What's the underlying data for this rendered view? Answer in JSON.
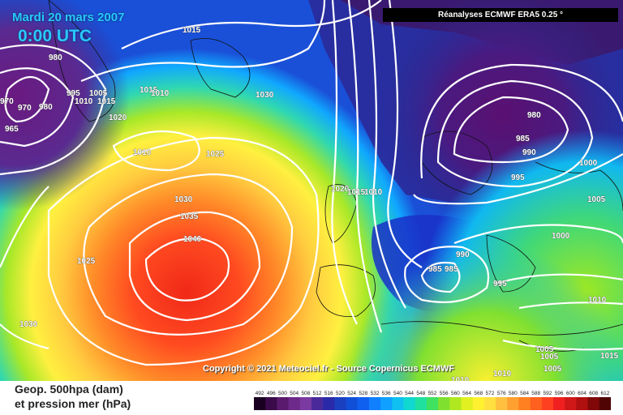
{
  "header": {
    "date": "Mardi 20 mars 2007",
    "time": "0:00 UTC",
    "source": "Réanalyses ECMWF ERA5 0.25 °"
  },
  "copyright": "Copyright © 2021 Meteociel.fr - Source Copernicus ECMWF",
  "legend": {
    "line1": "Geop. 500hpa (dam)",
    "line2": "et pression mer (hPa)",
    "scale_values": [
      "492",
      "496",
      "500",
      "504",
      "508",
      "512",
      "516",
      "520",
      "524",
      "528",
      "532",
      "536",
      "540",
      "544",
      "548",
      "552",
      "556",
      "560",
      "564",
      "568",
      "572",
      "576",
      "580",
      "584",
      "588",
      "592",
      "596",
      "600",
      "604",
      "608",
      "612"
    ],
    "scale_colors": [
      "#1a0020",
      "#3b0a4a",
      "#5a1a6e",
      "#6e2a8a",
      "#7a3aa0",
      "#4a2a9a",
      "#2a2aa8",
      "#1a40c0",
      "#1050d8",
      "#1060f0",
      "#1080ff",
      "#10a0ff",
      "#10c0f0",
      "#10d8d0",
      "#20e0a0",
      "#40e060",
      "#80e030",
      "#b0e820",
      "#e0f020",
      "#fff030",
      "#ffe040",
      "#ffc040",
      "#ffa030",
      "#ff8020",
      "#ff6020",
      "#ff4020",
      "#f02020",
      "#d01818",
      "#b01010",
      "#800808",
      "#500404"
    ]
  },
  "pressure_labels": [
    {
      "text": "1015"
    },
    {
      "text": "980"
    },
    {
      "text": "970"
    },
    {
      "text": "970"
    },
    {
      "text": "980"
    },
    {
      "text": "965"
    },
    {
      "text": "995"
    },
    {
      "text": "1005"
    },
    {
      "text": "1010"
    },
    {
      "text": "1015"
    },
    {
      "text": "1020"
    },
    {
      "text": "1015"
    },
    {
      "text": "1010"
    },
    {
      "text": "1030"
    },
    {
      "text": "1010"
    },
    {
      "text": "1025"
    },
    {
      "text": "1030"
    },
    {
      "text": "1035"
    },
    {
      "text": "1040"
    },
    {
      "text": "1025"
    },
    {
      "text": "1030"
    },
    {
      "text": "1020"
    },
    {
      "text": "1015"
    },
    {
      "text": "1010"
    },
    {
      "text": "980"
    },
    {
      "text": "985"
    },
    {
      "text": "990"
    },
    {
      "text": "995"
    },
    {
      "text": "1000"
    },
    {
      "text": "1005"
    },
    {
      "text": "1000"
    },
    {
      "text": "990"
    },
    {
      "text": "985"
    },
    {
      "text": "985"
    },
    {
      "text": "995"
    },
    {
      "text": "1010"
    },
    {
      "text": "1005"
    },
    {
      "text": "1005"
    },
    {
      "text": "1005"
    },
    {
      "text": "1015"
    },
    {
      "text": "1010"
    },
    {
      "text": "1010"
    }
  ]
}
